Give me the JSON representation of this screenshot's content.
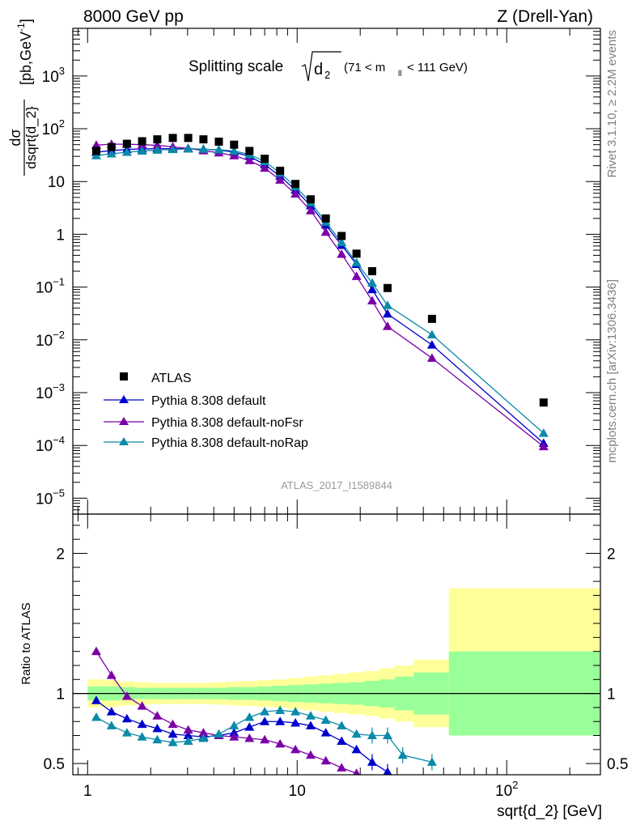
{
  "header": {
    "left": "8000 GeV pp",
    "right": "Z (Drell-Yan)"
  },
  "side_labels": {
    "rivet": "Rivet 3.1.10, ≥ 2.2M events",
    "mcplots": "mcplots.cern.ch [arXiv:1306.3436]"
  },
  "watermark": "ATLAS_2017_I1589844",
  "colors": {
    "atlas": "#000000",
    "default": "#0000cc",
    "noFsr": "#7a00a8",
    "noRap": "#0a8aa8",
    "band_inner": "#99ff99",
    "band_outer": "#ffff99"
  },
  "chart_data": [
    {
      "type": "scatter",
      "title_main": "Splitting scale",
      "title_sqrt": "d",
      "title_sub": "2",
      "title_cut": "(71 < m",
      "title_cut_sub": "ll",
      "title_cut_end": "< 111 GeV)",
      "ylabel": "dσ/dsqrt{d_2} [pb,GeV⁻¹]",
      "ylabel_num": "dσ",
      "ylabel_den": "dsqrt{d_2}",
      "ylabel_units": "[pb,GeV",
      "ylabel_units_sup": "-1",
      "ylabel_units_end": "]",
      "xscale": "log",
      "yscale": "log",
      "xlim": [
        0.85,
        280
      ],
      "ylim": [
        5e-06,
        8000
      ],
      "y_ticks": [
        {
          "label": "10",
          "sup": "3"
        },
        {
          "label": "10",
          "sup": "2"
        },
        {
          "label": "10",
          "sup": ""
        },
        {
          "label": "1",
          "sup": ""
        },
        {
          "label": "10",
          "sup": "−1"
        },
        {
          "label": "10",
          "sup": "−2"
        },
        {
          "label": "10",
          "sup": "−3"
        },
        {
          "label": "10",
          "sup": "−4"
        },
        {
          "label": "10",
          "sup": "−5"
        }
      ],
      "y_tick_values": [
        1000,
        100,
        10,
        1,
        0.1,
        0.01,
        0.001,
        0.0001,
        1e-05
      ],
      "legend_position": "bottom-left",
      "x": [
        1.1,
        1.3,
        1.54,
        1.82,
        2.15,
        2.55,
        3.02,
        3.57,
        4.23,
        5.0,
        5.92,
        7.0,
        8.29,
        9.81,
        11.6,
        13.7,
        16.3,
        19.2,
        22.8,
        27.0,
        31.9,
        44.0,
        150.0
      ],
      "series": [
        {
          "name": "ATLAS",
          "marker": "square",
          "values": [
            38,
            45,
            52,
            58,
            63,
            67,
            67,
            63,
            57,
            50,
            38,
            27,
            16,
            9.0,
            4.6,
            2.0,
            0.93,
            0.43,
            0.2,
            0.096,
            null,
            0.025,
            0.00065
          ]
        },
        {
          "name": "Pythia 8.308 default",
          "marker": "triangle",
          "values": [
            36,
            38.5,
            40.5,
            41.5,
            42,
            42,
            42,
            41,
            39.5,
            36,
            30,
            21,
            12.6,
            6.9,
            3.5,
            1.5,
            0.62,
            0.27,
            0.09,
            0.031,
            null,
            0.008,
            0.00011
          ]
        },
        {
          "name": "Pythia 8.308 default-noFsr",
          "marker": "triangle",
          "values": [
            49,
            51,
            51,
            50,
            48.5,
            45.5,
            42.5,
            38.5,
            35,
            31,
            25,
            18,
            10.7,
            5.8,
            2.8,
            1.1,
            0.42,
            0.16,
            0.055,
            0.018,
            null,
            0.0045,
            9.5e-05
          ]
        },
        {
          "name": "Pythia 8.308 default-noRap",
          "marker": "triangle",
          "values": [
            31,
            33.5,
            36,
            38,
            39.5,
            40.5,
            41.5,
            41,
            40,
            38,
            32.5,
            24,
            14.5,
            8.0,
            4.0,
            1.7,
            0.7,
            0.29,
            0.12,
            0.045,
            null,
            0.0125,
            0.00017
          ]
        }
      ]
    },
    {
      "type": "line",
      "ylabel": "Ratio to ATLAS",
      "xlabel": "sqrt{d_2} [GeV]",
      "xscale": "log",
      "xlim": [
        0.85,
        280
      ],
      "ylim": [
        0.42,
        2.28
      ],
      "y_ticks": [
        "0.5",
        "1",
        "2"
      ],
      "y_tick_values": [
        0.5,
        1,
        2
      ],
      "x_ticks": [
        {
          "label": "1",
          "sup": ""
        },
        {
          "label": "10",
          "sup": ""
        },
        {
          "label": "10",
          "sup": "2"
        }
      ],
      "x_tick_values": [
        1,
        10,
        100
      ],
      "bands": {
        "edges": [
          1.0,
          1.2,
          1.42,
          1.68,
          1.99,
          2.35,
          2.78,
          3.29,
          3.89,
          4.6,
          5.44,
          6.44,
          7.62,
          9.0,
          10.65,
          12.6,
          14.9,
          17.65,
          20.9,
          24.7,
          29.2,
          36.0,
          53.0,
          280.0
        ],
        "inner": [
          0.05,
          0.05,
          0.045,
          0.04,
          0.04,
          0.04,
          0.04,
          0.04,
          0.04,
          0.045,
          0.045,
          0.05,
          0.055,
          0.06,
          0.065,
          0.07,
          0.075,
          0.08,
          0.09,
          0.1,
          0.12,
          0.15,
          0.3
        ],
        "outer": [
          0.1,
          0.095,
          0.085,
          0.08,
          0.075,
          0.075,
          0.075,
          0.075,
          0.08,
          0.085,
          0.09,
          0.095,
          0.1,
          0.11,
          0.12,
          0.13,
          0.14,
          0.15,
          0.16,
          0.18,
          0.2,
          0.24,
          0.3
        ]
      },
      "bands_outer_asym": {
        "bin_index": 22,
        "up": 0.75,
        "down": 0.3
      },
      "series": [
        {
          "name": "Pythia 8.308 default",
          "x": [
            1.1,
            1.3,
            1.54,
            1.82,
            2.15,
            2.55,
            3.02,
            3.57,
            4.23,
            5.0,
            5.92,
            7.0,
            8.29,
            9.81,
            11.6,
            13.7,
            16.3,
            19.2,
            22.8,
            27.0
          ],
          "values": [
            0.95,
            0.87,
            0.82,
            0.78,
            0.75,
            0.71,
            0.7,
            0.69,
            0.7,
            0.72,
            0.76,
            0.8,
            0.8,
            0.79,
            0.77,
            0.72,
            0.66,
            0.6,
            0.51,
            0.44
          ]
        },
        {
          "name": "Pythia 8.308 default-noFsr",
          "x": [
            1.1,
            1.3,
            1.54,
            1.82,
            2.15,
            2.55,
            3.02,
            3.57,
            4.23,
            5.0,
            5.92,
            7.0,
            8.29,
            9.81,
            11.6,
            13.7,
            16.3,
            19.2
          ],
          "values": [
            1.3,
            1.13,
            0.98,
            0.91,
            0.84,
            0.78,
            0.74,
            0.72,
            0.7,
            0.69,
            0.68,
            0.67,
            0.64,
            0.6,
            0.56,
            0.52,
            0.47,
            0.43
          ]
        },
        {
          "name": "Pythia 8.308 default-noRap",
          "x": [
            1.1,
            1.3,
            1.54,
            1.82,
            2.15,
            2.55,
            3.02,
            3.57,
            4.23,
            5.0,
            5.92,
            7.0,
            8.29,
            9.81,
            11.6,
            13.7,
            16.3,
            19.2,
            22.8,
            27.0,
            31.9,
            44.0
          ],
          "values": [
            0.83,
            0.77,
            0.72,
            0.69,
            0.67,
            0.65,
            0.66,
            0.68,
            0.71,
            0.77,
            0.83,
            0.87,
            0.88,
            0.87,
            0.84,
            0.81,
            0.77,
            0.71,
            0.7,
            0.7,
            0.56,
            0.51
          ]
        }
      ]
    }
  ]
}
